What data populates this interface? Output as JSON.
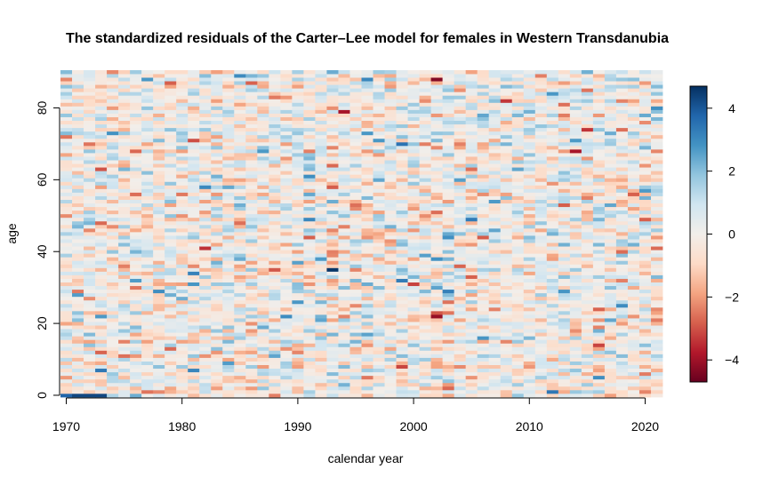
{
  "chart_data": {
    "type": "heatmap",
    "title": "The standardized residuals of the Carter–Lee model for females in Western Transdanubia",
    "xlabel": "calendar year",
    "ylabel": "age",
    "x": {
      "start": 1970,
      "end": 2021,
      "step": 1
    },
    "y": {
      "start": 0,
      "end": 90,
      "step": 1
    },
    "xlim": [
      1969.5,
      2021.5
    ],
    "ylim": [
      -0.5,
      90.5
    ],
    "x_ticks": [
      1970,
      1980,
      1990,
      2000,
      2010,
      2020
    ],
    "y_ticks": [
      0,
      20,
      40,
      60,
      80
    ],
    "colorbar": {
      "range": [
        -4.7,
        4.7
      ],
      "ticks": [
        4,
        2,
        0,
        -2,
        -4
      ],
      "tick_labels": [
        "4",
        "2",
        "0",
        "−2",
        "−4"
      ],
      "palette": [
        "#67001F",
        "#B2182B",
        "#D6604D",
        "#F4A582",
        "#FDDBC7",
        "#F2EEEA",
        "#D1E5F0",
        "#92C5DE",
        "#4393C3",
        "#2166AC",
        "#053061"
      ]
    },
    "notable_cells": [
      {
        "x": 1993,
        "y": 35,
        "value": 4.6
      },
      {
        "x": 1971,
        "y": 0,
        "value": 4.3
      },
      {
        "x": 1972,
        "y": 0,
        "value": 4.3
      },
      {
        "x": 1973,
        "y": 0,
        "value": 4.3
      },
      {
        "x": 1970,
        "y": 0,
        "value": 3.8
      },
      {
        "x": 1994,
        "y": 79,
        "value": -3.9
      },
      {
        "x": 2014,
        "y": 68,
        "value": -3.9
      },
      {
        "x": 2005,
        "y": 63,
        "value": -2.6
      },
      {
        "x": 2019,
        "y": 56,
        "value": -2.8
      },
      {
        "x": 2020,
        "y": 49,
        "value": -2.8
      },
      {
        "x": 1986,
        "y": 87,
        "value": -2.8
      },
      {
        "x": 2012,
        "y": 1,
        "value": 3.4
      },
      {
        "x": 1996,
        "y": 88,
        "value": 3.1
      }
    ],
    "generation": {
      "seed": 20240611,
      "sd": 1.05,
      "clip": 4.6
    }
  }
}
